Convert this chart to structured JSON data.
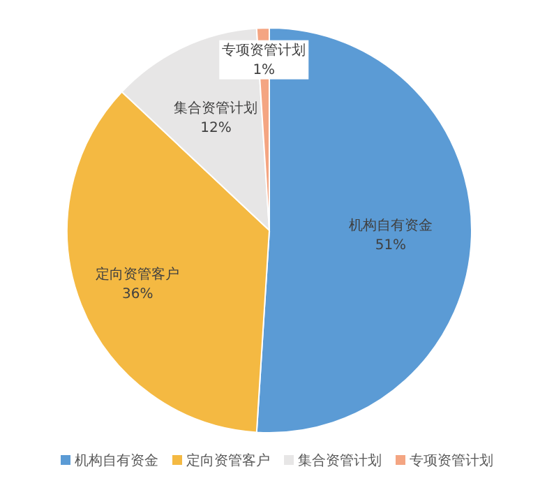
{
  "chart_data": {
    "type": "pie",
    "categories": [
      "机构自有资金",
      "定向资管客户",
      "集合资管计划",
      "专项资管计划"
    ],
    "values": [
      51,
      36,
      12,
      1
    ],
    "colors": [
      "#5b9bd5",
      "#f4b942",
      "#e7e6e6",
      "#f4a582"
    ],
    "value_labels": [
      "51%",
      "36%",
      "12%",
      "1%"
    ],
    "legend": "bottom"
  }
}
